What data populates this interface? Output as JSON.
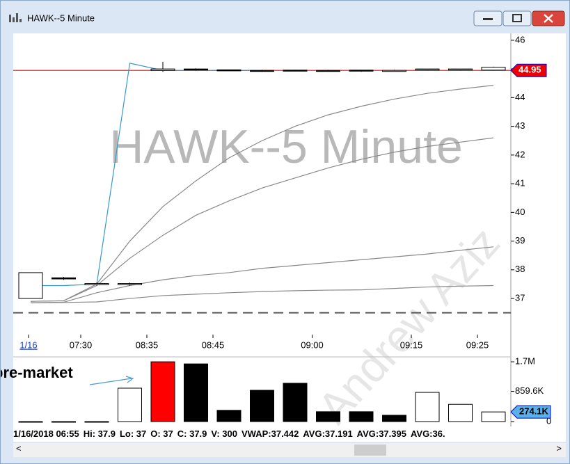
{
  "window": {
    "title": "HAWK--5 Minute"
  },
  "watermark": "HAWK--5 Minute",
  "watermark2": "Andrew Aziz",
  "annotation": "pre-market",
  "chart_data": [
    {
      "type": "candlestick",
      "categories": [
        "1/16",
        null,
        "07:30",
        null,
        "08:35",
        null,
        "08:45",
        null,
        null,
        "09:00",
        null,
        null,
        "09:15",
        null,
        "09:25"
      ],
      "open": [
        37,
        37.72,
        37.48,
        37.5,
        44.95,
        45,
        44.97,
        44.95,
        44.96,
        44.95,
        44.96,
        44.95,
        44.98,
        44.98,
        44.96
      ],
      "high": [
        37.9,
        37.75,
        37.55,
        37.55,
        45.25,
        45.02,
        44.98,
        44.97,
        44.97,
        44.97,
        44.97,
        44.97,
        45,
        45,
        45.08
      ],
      "low": [
        37,
        37.65,
        37.45,
        37.45,
        44.9,
        44.95,
        44.93,
        44.9,
        44.92,
        44.92,
        44.9,
        44.92,
        44.95,
        44.95,
        44.95
      ],
      "close": [
        37.9,
        37.68,
        37.52,
        37.52,
        45,
        44.98,
        44.95,
        44.93,
        44.94,
        44.94,
        44.93,
        44.95,
        45,
        45,
        45.06
      ],
      "series": [
        {
          "color": "#3399cc",
          "values": [
            37.45,
            37.45,
            37.5,
            45.2,
            44.95,
            44.95,
            44.95,
            44.95,
            null,
            null,
            null,
            null,
            null,
            null,
            null
          ]
        },
        {
          "color": "#888888",
          "values": [
            36.9,
            36.92,
            37.5,
            39,
            40.2,
            41.1,
            41.9,
            42.5,
            43,
            43.4,
            43.7,
            43.95,
            44.15,
            44.3,
            44.43
          ]
        },
        {
          "color": "#888888",
          "values": [
            36.9,
            36.92,
            37.45,
            38.4,
            39.2,
            39.9,
            40.4,
            40.85,
            41.2,
            41.55,
            41.85,
            42.1,
            42.3,
            42.45,
            42.6
          ]
        },
        {
          "color": "#888888",
          "values": [
            36.85,
            36.87,
            37.2,
            37.45,
            37.65,
            37.8,
            37.9,
            38.05,
            38.15,
            38.25,
            38.35,
            38.45,
            38.55,
            38.68,
            38.8
          ]
        },
        {
          "color": "#888888",
          "values": [
            36.85,
            36.86,
            36.88,
            37,
            37.1,
            37.15,
            37.2,
            37.24,
            37.27,
            37.29,
            37.3,
            37.35,
            37.4,
            37.43,
            37.45
          ]
        }
      ],
      "reference_line": 36.5,
      "marker": 44.95,
      "ylim": [
        35.74,
        46.24
      ],
      "yticks": [
        46,
        45,
        44,
        43,
        42,
        41,
        40,
        39,
        38,
        37
      ]
    },
    {
      "type": "bar",
      "values": [
        300,
        300,
        300,
        950000,
        1700000,
        1640000,
        320000,
        890000,
        1090000,
        280000,
        280000,
        180000,
        830000,
        490000,
        274100
      ],
      "colors": [
        "#ffffff",
        "#ffffff",
        "#ffffff",
        "#ffffff",
        "#ff0000",
        "#000000",
        "#000000",
        "#000000",
        "#000000",
        "#000000",
        "#000000",
        "#000000",
        "#ffffff",
        "#ffffff",
        "#ffffff"
      ],
      "marker": {
        "value": 274100,
        "label": "274.1K"
      },
      "ylim": [
        0,
        1840000
      ],
      "yticks": [
        {
          "value": 1700000,
          "label": "1.7M"
        },
        {
          "value": 859600,
          "label": "859.6K"
        },
        0
      ]
    }
  ],
  "status_bar": [
    "1/16/2018 06:55",
    "Hi: 37.9",
    "Lo: 37",
    "O: 37",
    "C: 37.9",
    "V: 300",
    "VWAP:37.442",
    "AVG:37.191",
    "AVG:37.395",
    "AVG:36."
  ]
}
